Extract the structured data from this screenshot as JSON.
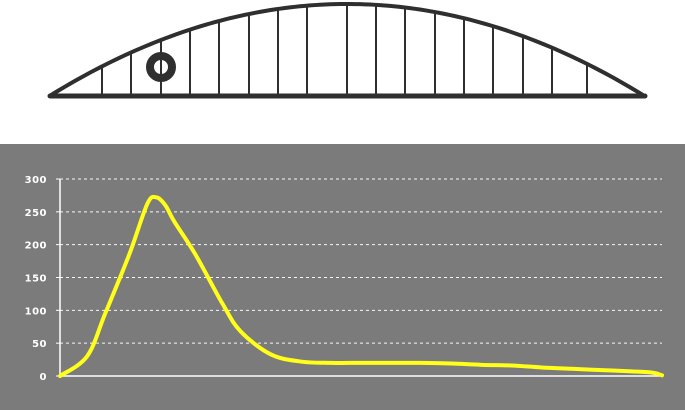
{
  "colors": {
    "background": "#ffffff",
    "structure_stroke": "#2f2f2f",
    "chart_background": "#7b7b7b",
    "axis": "#ffffff",
    "grid": "#ffffff",
    "series": "#ffff1a"
  },
  "icons": {
    "load_marker": "ring-icon"
  },
  "structure": {
    "marker_panel": 4
  },
  "chart_data": {
    "type": "line",
    "title": "",
    "xlabel": "",
    "ylabel": "",
    "ylim": [
      0,
      300
    ],
    "yticks": [
      0,
      50,
      100,
      150,
      200,
      250,
      300
    ],
    "grid": true,
    "legend": "none",
    "x": [
      0,
      0.045,
      0.075,
      0.115,
      0.145,
      0.16,
      0.175,
      0.19,
      0.225,
      0.27,
      0.3,
      0.35,
      0.4,
      0.45,
      0.5,
      0.55,
      0.6,
      0.65,
      0.7,
      0.75,
      0.8,
      0.85,
      0.9,
      0.95,
      0.985,
      1.0
    ],
    "series": [
      {
        "values": [
          0,
          30,
          95,
          185,
          262,
          272,
          260,
          235,
          185,
          110,
          68,
          33,
          22,
          20,
          20,
          20,
          20,
          19,
          17,
          16,
          13,
          11,
          9,
          7,
          5,
          1
        ]
      }
    ]
  }
}
